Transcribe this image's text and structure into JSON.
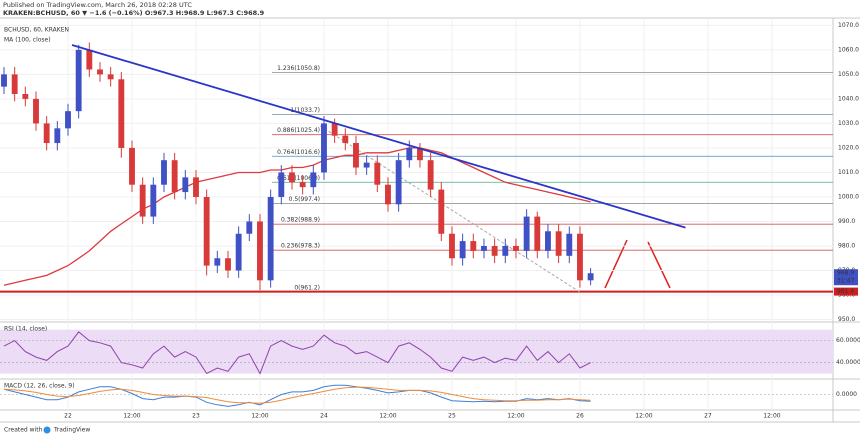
{
  "header": {
    "published": "Published on TradingView.com, March 26, 2018 02:28 UTC",
    "symbol_line": "KRAKEN:BCHUSD, 60 ▼ −1.6 (−0.16%) O:967.3 H:968.9 L:967.3 C:968.9"
  },
  "footer": {
    "created": "Created with",
    "brand": "TradingView"
  },
  "chart_data": [
    {
      "type": "candlestick",
      "title": "BCHUSD, 60, KRAKEN",
      "x": [
        -12,
        -10,
        -8,
        -6,
        -4,
        -2,
        0,
        2,
        4,
        6,
        8,
        10,
        12,
        14,
        16,
        18,
        20,
        22,
        24,
        26,
        28,
        30,
        32,
        34,
        36,
        38,
        40,
        42,
        44,
        46,
        48,
        50,
        52,
        54,
        56,
        58,
        60,
        62,
        64,
        66,
        68,
        70,
        72,
        74,
        76,
        78,
        80,
        82,
        84,
        86,
        88,
        90,
        92,
        94,
        96,
        98
      ],
      "open": [
        1045,
        1050,
        1042,
        1040,
        1030,
        1022,
        1028,
        1035,
        1060,
        1052,
        1050,
        1048,
        1020,
        1005,
        992,
        1005,
        1015,
        1002,
        1008,
        1000,
        972,
        975,
        970,
        985,
        990,
        966,
        1000,
        1010,
        1006,
        1004,
        1010,
        1030,
        1025,
        1022,
        1012,
        1014,
        1005,
        997,
        1015,
        1020,
        1015,
        1003,
        985,
        975,
        982,
        978,
        980,
        976,
        980,
        978,
        992,
        978,
        986,
        976,
        985,
        966
      ],
      "high": [
        1053,
        1053,
        1045,
        1043,
        1033,
        1031,
        1038,
        1062,
        1063,
        1055,
        1053,
        1051,
        1023,
        1008,
        1008,
        1018,
        1018,
        1011,
        1011,
        1003,
        978,
        978,
        988,
        993,
        993,
        1003,
        1013,
        1013,
        1009,
        1013,
        1033,
        1032,
        1028,
        1025,
        1017,
        1017,
        1008,
        1018,
        1023,
        1022,
        1018,
        1006,
        988,
        985,
        985,
        983,
        983,
        983,
        983,
        995,
        994,
        989,
        989,
        988,
        988,
        971
      ],
      "low": [
        1042,
        1039,
        1037,
        1027,
        1019,
        1019,
        1025,
        1032,
        1049,
        1047,
        1045,
        1016,
        1002,
        989,
        989,
        1002,
        999,
        999,
        997,
        968,
        969,
        967,
        967,
        982,
        962,
        963,
        997,
        1003,
        1001,
        1001,
        1007,
        1022,
        1019,
        1009,
        1009,
        1002,
        994,
        994,
        1012,
        1012,
        1000,
        982,
        972,
        972,
        975,
        975,
        973,
        973,
        975,
        975,
        975,
        975,
        973,
        973,
        963,
        964
      ],
      "close": [
        1050,
        1042,
        1040,
        1030,
        1022,
        1028,
        1035,
        1060,
        1052,
        1050,
        1048,
        1020,
        1005,
        992,
        1005,
        1015,
        1002,
        1008,
        1000,
        972,
        975,
        970,
        985,
        990,
        966,
        1000,
        1010,
        1006,
        1004,
        1010,
        1030,
        1025,
        1022,
        1012,
        1014,
        1005,
        997,
        1015,
        1020,
        1015,
        1003,
        985,
        975,
        982,
        978,
        980,
        976,
        980,
        978,
        992,
        978,
        986,
        976,
        985,
        966,
        968.9
      ],
      "up_color": "#3f51c4",
      "down_color": "#d83a3a",
      "lines": [
        {
          "name": "MA (100, close)",
          "color": "#e0393e",
          "values": [
            964,
            965,
            966,
            967,
            968,
            970,
            972,
            975,
            978,
            982,
            986,
            989,
            992,
            995,
            997,
            1000,
            1002,
            1004,
            1006,
            1007,
            1008,
            1009,
            1010,
            1010,
            1010,
            1011,
            1011,
            1012,
            1012,
            1013,
            1015,
            1016,
            1017,
            1017,
            1018,
            1018,
            1018,
            1019,
            1020,
            1020,
            1019,
            1018,
            1016,
            1014,
            1012,
            1010,
            1008,
            1006,
            1005,
            1004,
            1003,
            1002,
            1001,
            1000,
            999,
            998
          ]
        }
      ],
      "fib_levels": [
        {
          "label": "1.236(1050.8)",
          "value": 1050.8,
          "color": "#9e9e9e"
        },
        {
          "label": "1(1033.7)",
          "value": 1033.7,
          "color": "#7e8fa6"
        },
        {
          "label": "0.886(1025.4)",
          "value": 1025.4,
          "color": "#d45757"
        },
        {
          "label": "0.764(1016.6)",
          "value": 1016.6,
          "color": "#4a8ccc"
        },
        {
          "label": "0.618(1006.0)",
          "value": 1006.0,
          "color": "#4caf7d"
        },
        {
          "label": "0.5(997.4)",
          "value": 997.4,
          "color": "#888888"
        },
        {
          "label": "0.382(988.9)",
          "value": 988.9,
          "color": "#d45757"
        },
        {
          "label": "0.236(978.3)",
          "value": 978.3,
          "color": "#d45757"
        },
        {
          "label": "0(961.2)",
          "value": 961.2,
          "color": "#9e9e9e"
        }
      ],
      "trendline": {
        "x": [
          0.75,
          115.8
        ],
        "values": [
          1062,
          987.5
        ],
        "color": "#2b35c8"
      },
      "fib_diagonal": {
        "x": [
          47.3,
          96
        ],
        "values": [
          1029,
          961.2
        ],
        "color": "#aaaaaa"
      },
      "support": {
        "value": 961.4,
        "color": "#cc1f1f"
      },
      "countdown": "31:47",
      "xlim": [
        -12.75,
        143.45
      ],
      "ylim": [
        949,
        1073
      ],
      "xticks": [
        {
          "value": 0,
          "label": "22"
        },
        {
          "value": 12,
          "label": "12:00"
        },
        {
          "value": 24,
          "label": "23"
        },
        {
          "value": 36,
          "label": "12:00"
        },
        {
          "value": 48,
          "label": "24"
        },
        {
          "value": 60,
          "label": "12:00"
        },
        {
          "value": 72,
          "label": "25"
        },
        {
          "value": 84,
          "label": "12:00"
        },
        {
          "value": 96,
          "label": "26"
        },
        {
          "value": 108,
          "label": "12:00"
        },
        {
          "value": 120,
          "label": "27"
        },
        {
          "value": 132,
          "label": "12:00"
        }
      ],
      "yticks": [
        {
          "value": 950,
          "label": "950.0"
        },
        {
          "value": 960,
          "label": "960.0"
        },
        {
          "value": 970,
          "label": "970.0"
        },
        {
          "value": 980,
          "label": "980.0"
        },
        {
          "value": 990,
          "label": "990.0"
        },
        {
          "value": 1000,
          "label": "1000.0"
        },
        {
          "value": 1010,
          "label": "1010.0"
        },
        {
          "value": 1020,
          "label": "1020.0"
        },
        {
          "value": 1030,
          "label": "1030.0"
        },
        {
          "value": 1040,
          "label": "1040.0"
        },
        {
          "value": 1050,
          "label": "1050.0"
        },
        {
          "value": 1060,
          "label": "1060.0"
        },
        {
          "value": 1070,
          "label": "1070.0"
        }
      ],
      "grid": true
    },
    {
      "type": "line",
      "title": "RSI (14, close)",
      "band": [
        30,
        70
      ],
      "band_color": "#ecdcf5",
      "ylim": [
        25,
        77
      ],
      "yticks": [
        {
          "value": 60,
          "label": "60.0000"
        },
        {
          "value": 40,
          "label": "40.0000"
        }
      ],
      "series": [
        {
          "color": "#8e44ad",
          "values": [
            55,
            60,
            50,
            45,
            42,
            50,
            55,
            68,
            60,
            58,
            55,
            40,
            38,
            35,
            48,
            55,
            45,
            50,
            45,
            30,
            35,
            32,
            45,
            48,
            30,
            55,
            60,
            55,
            52,
            55,
            65,
            58,
            55,
            48,
            50,
            45,
            40,
            55,
            58,
            52,
            45,
            35,
            32,
            45,
            42,
            45,
            40,
            44,
            42,
            55,
            42,
            50,
            40,
            48,
            35,
            40
          ]
        }
      ]
    },
    {
      "type": "line",
      "title": "MACD (12, 26, close, 9)",
      "ylim": [
        -3,
        3
      ],
      "yticks": [
        {
          "value": 0,
          "label": "0.0000"
        }
      ],
      "series": [
        {
          "color": "#3f7fd6",
          "values": [
            1,
            0.5,
            0,
            -0.5,
            -1,
            -1,
            -0.5,
            0.5,
            1,
            1.5,
            1.5,
            1,
            0.2,
            -0.8,
            -1,
            -0.5,
            -0.5,
            -0.3,
            -0.5,
            -1.5,
            -2,
            -2.3,
            -2,
            -1.5,
            -2,
            -1,
            0,
            0.5,
            0.5,
            0.8,
            1.5,
            1.8,
            1.8,
            1.5,
            1.2,
            0.8,
            0.3,
            0.5,
            0.8,
            0.8,
            0.3,
            -0.5,
            -1.2,
            -1.3,
            -1.4,
            -1.3,
            -1.4,
            -1.3,
            -1.3,
            -0.8,
            -1,
            -0.8,
            -1,
            -0.8,
            -1.2,
            -1.3
          ]
        },
        {
          "color": "#f08c3a",
          "values": [
            1,
            0.9,
            0.7,
            0.4,
            0,
            -0.3,
            -0.4,
            -0.2,
            0.2,
            0.6,
            0.9,
            1,
            0.8,
            0.4,
            0,
            -0.2,
            -0.3,
            -0.3,
            -0.4,
            -0.6,
            -1,
            -1.4,
            -1.6,
            -1.6,
            -1.7,
            -1.5,
            -1.1,
            -0.6,
            -0.2,
            0.2,
            0.6,
            1,
            1.3,
            1.4,
            1.4,
            1.2,
            1,
            0.8,
            0.8,
            0.8,
            0.7,
            0.4,
            0,
            -0.4,
            -0.8,
            -1,
            -1.1,
            -1.2,
            -1.2,
            -1.1,
            -1.1,
            -1,
            -1,
            -0.9,
            -1,
            -1.1
          ]
        }
      ]
    }
  ]
}
